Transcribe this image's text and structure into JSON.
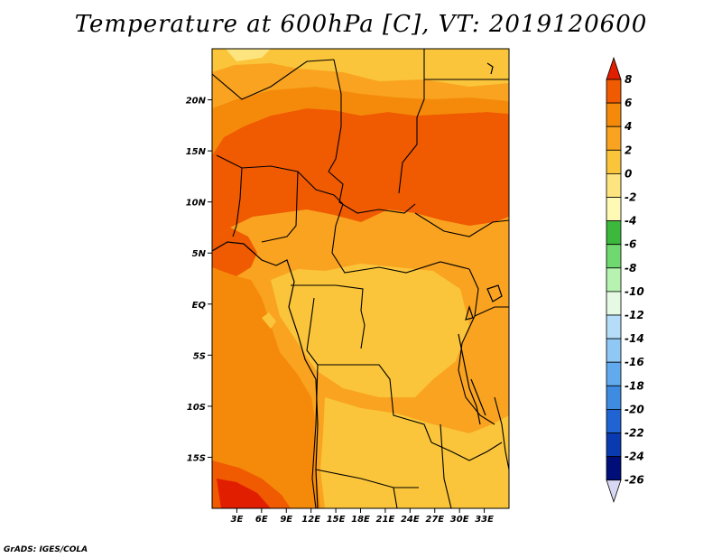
{
  "title": "Temperature at 600hPa [C], VT: 2019120600",
  "credit": "GrADS: IGES/COLA",
  "map": {
    "lon_range": [
      0,
      36
    ],
    "lat_range": [
      -20,
      25
    ],
    "lat_ticks": [
      {
        "lat": 20,
        "label": "20N"
      },
      {
        "lat": 15,
        "label": "15N"
      },
      {
        "lat": 10,
        "label": "10N"
      },
      {
        "lat": 5,
        "label": "5N"
      },
      {
        "lat": 0,
        "label": "EQ"
      },
      {
        "lat": -5,
        "label": "5S"
      },
      {
        "lat": -10,
        "label": "10S"
      },
      {
        "lat": -15,
        "label": "15S"
      }
    ],
    "lon_ticks": [
      {
        "lon": 3,
        "label": "3E"
      },
      {
        "lon": 6,
        "label": "6E"
      },
      {
        "lon": 9,
        "label": "9E"
      },
      {
        "lon": 12,
        "label": "12E"
      },
      {
        "lon": 15,
        "label": "15E"
      },
      {
        "lon": 18,
        "label": "18E"
      },
      {
        "lon": 21,
        "label": "21E"
      },
      {
        "lon": 24,
        "label": "24E"
      },
      {
        "lon": 27,
        "label": "27E"
      },
      {
        "lon": 30,
        "label": "30E"
      },
      {
        "lon": 33,
        "label": "33E"
      }
    ]
  },
  "colorbar": {
    "labels": [
      "8",
      "6",
      "4",
      "2",
      "0",
      "-2",
      "-4",
      "-6",
      "-8",
      "-10",
      "-12",
      "-14",
      "-16",
      "-18",
      "-20",
      "-22",
      "-24",
      "-26"
    ],
    "colors": [
      "#e11e00",
      "#f05a00",
      "#f58a0a",
      "#f9a320",
      "#fac53a",
      "#fde47f",
      "#fef9b4",
      "#3cb83c",
      "#6fd86f",
      "#b6f3b1",
      "#e6fae3",
      "#b5dcf8",
      "#90c8f5",
      "#62aaee",
      "#3d8ce2",
      "#1f64d2",
      "#0a3ab0",
      "#000e7a",
      "#d8d8f4"
    ]
  },
  "colors": {
    "c_2_4": "#f9a320",
    "c_0_2": "#fac53a",
    "c_4_6": "#f58a0a",
    "c_6_8": "#f05a00",
    "c_8up": "#e11e00",
    "c_m2_0": "#fde47f"
  }
}
